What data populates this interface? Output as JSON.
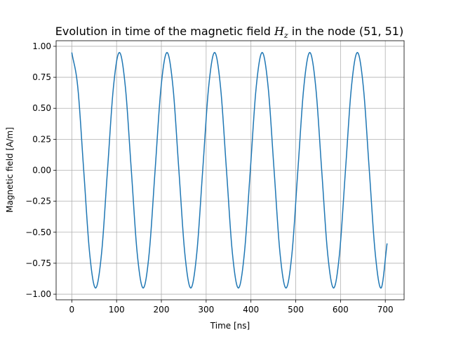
{
  "chart_data": {
    "type": "line",
    "title": {
      "prefix": "Evolution in time of the magnetic field ",
      "symbol": "H",
      "subscript": "z",
      "suffix": " in the node (51, 51)"
    },
    "xlabel": "Time [ns]",
    "ylabel": "Magnetic field [A/m]",
    "xlim": [
      -35,
      742
    ],
    "ylim": [
      -1.045,
      1.045
    ],
    "xticks": [
      0,
      100,
      200,
      300,
      400,
      500,
      600,
      700
    ],
    "xtick_labels": [
      "0",
      "100",
      "200",
      "300",
      "400",
      "500",
      "600",
      "700"
    ],
    "yticks": [
      -1.0,
      -0.75,
      -0.5,
      -0.25,
      0.0,
      0.25,
      0.5,
      0.75,
      1.0
    ],
    "ytick_labels": [
      "−1.00",
      "−0.75",
      "−0.50",
      "−0.25",
      "0.00",
      "0.25",
      "0.50",
      "0.75",
      "1.00"
    ],
    "grid": true,
    "series": [
      {
        "color": "#1f77b4",
        "x": [
          0,
          13.3,
          26.6,
          39.9,
          53.1,
          66.4,
          79.7,
          93,
          106.3,
          119.6,
          132.9,
          146.1,
          159.4,
          172.7,
          186,
          199.3,
          212.6,
          225.9,
          239.1,
          252.4,
          265.7,
          279,
          292.3,
          305.6,
          318.9,
          332.1,
          345.4,
          358.7,
          372,
          385.3,
          398.6,
          411.8,
          425.1,
          438.4,
          451.7,
          465,
          478.3,
          491.6,
          504.8,
          518.1,
          531.4,
          544.7,
          558,
          571.3,
          584.6,
          597.8,
          611.1,
          624.4,
          637.7,
          651,
          664.3,
          677.6,
          690.8,
          704
        ],
        "y": [
          0.95,
          0.672,
          0,
          -0.672,
          -0.95,
          -0.672,
          0,
          0.672,
          0.95,
          0.672,
          0,
          -0.672,
          -0.95,
          -0.672,
          0,
          0.672,
          0.95,
          0.672,
          0,
          -0.672,
          -0.95,
          -0.672,
          0,
          0.672,
          0.95,
          0.672,
          0,
          -0.672,
          -0.95,
          -0.672,
          0,
          0.672,
          0.95,
          0.672,
          0,
          -0.672,
          -0.95,
          -0.672,
          0,
          0.672,
          0.95,
          0.672,
          0,
          -0.672,
          -0.95,
          -0.672,
          0,
          0.672,
          0.95,
          0.672,
          0,
          -0.672,
          -0.95,
          -0.59
        ]
      }
    ]
  }
}
